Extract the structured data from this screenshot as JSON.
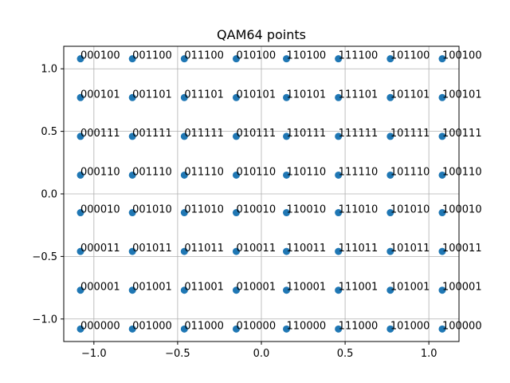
{
  "chart_data": {
    "type": "scatter",
    "title": "QAM64 points",
    "xlabel": "",
    "ylabel": "",
    "xlim": [
      -1.18,
      1.18
    ],
    "ylim": [
      -1.18,
      1.18
    ],
    "grid": true,
    "marker_color": "#1f77b4",
    "x_ticks": [
      -1.0,
      -0.5,
      0.0,
      0.5,
      1.0
    ],
    "x_tick_labels": [
      "−1.0",
      "−0.5",
      "0.0",
      "0.5",
      "1.0"
    ],
    "y_ticks": [
      -1.0,
      -0.5,
      0.0,
      0.5,
      1.0
    ],
    "y_tick_labels": [
      "−1.0",
      "−0.5",
      "0.0",
      "0.5",
      "1.0"
    ],
    "levels": [
      -1.08,
      -0.77,
      -0.46,
      -0.15,
      0.15,
      0.46,
      0.77,
      1.08
    ],
    "labels_grid": [
      [
        "000100",
        "001100",
        "011100",
        "010100",
        "110100",
        "111100",
        "101100",
        "100100"
      ],
      [
        "000101",
        "001101",
        "011101",
        "010101",
        "110101",
        "111101",
        "101101",
        "100101"
      ],
      [
        "000111",
        "001111",
        "011111",
        "010111",
        "110111",
        "111111",
        "101111",
        "100111"
      ],
      [
        "000110",
        "001110",
        "011110",
        "010110",
        "110110",
        "111110",
        "101110",
        "100110"
      ],
      [
        "000010",
        "001010",
        "011010",
        "010010",
        "110010",
        "111010",
        "101010",
        "100010"
      ],
      [
        "000011",
        "001011",
        "011011",
        "010011",
        "110011",
        "111011",
        "101011",
        "100011"
      ],
      [
        "000001",
        "001001",
        "011001",
        "010001",
        "110001",
        "111001",
        "101001",
        "100001"
      ],
      [
        "000000",
        "001000",
        "011000",
        "010000",
        "110000",
        "111000",
        "101000",
        "100000"
      ]
    ]
  }
}
